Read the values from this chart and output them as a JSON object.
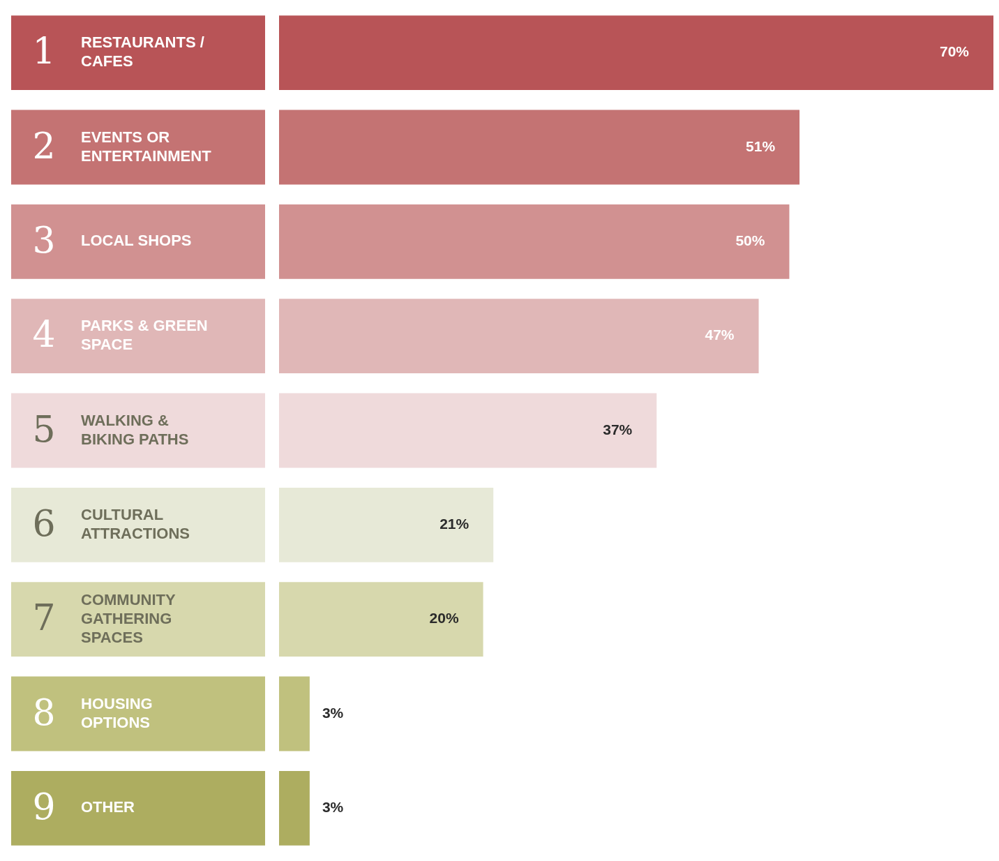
{
  "chart_data": {
    "type": "bar",
    "orientation": "horizontal",
    "legend": false,
    "value_labels": [
      "70%",
      "51%",
      "50%",
      "47%",
      "37%",
      "21%",
      "20%",
      "3%",
      "3%"
    ],
    "categories": [
      "1 RESTAURANTS / CAFES",
      "2 EVENTS OR ENTERTAINMENT",
      "3 LOCAL SHOPS",
      "4 PARKS & GREEN SPACE",
      "5 WALKING & BIKING PATHS",
      "6 CULTURAL ATTRACTIONS",
      "7 COMMUNITY GATHERING SPACES",
      "8 HOUSING OPTIONS",
      "9 OTHER"
    ],
    "values": [
      70,
      51,
      50,
      47,
      37,
      21,
      20,
      3,
      3
    ],
    "colors": [
      "#b85457",
      "#c47373",
      "#d19191",
      "#e0b7b7",
      "#efdadb",
      "#e7e9d7",
      "#d7d8ad",
      "#c0c17e",
      "#adad60"
    ]
  }
}
